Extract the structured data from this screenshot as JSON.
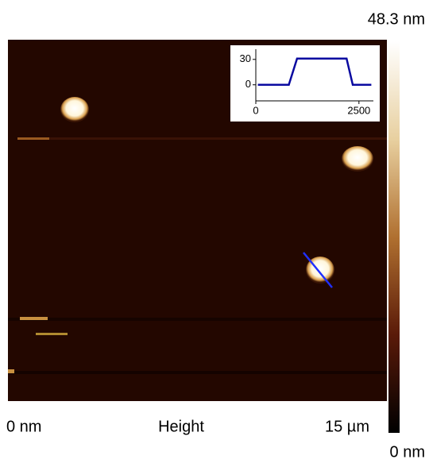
{
  "image": {
    "x_start_label": "0 nm",
    "channel_label": "Height",
    "x_end_label": "15 µm"
  },
  "colorbar": {
    "max_label": "48.3 nm",
    "min_label": "0 nm"
  },
  "chart_data": {
    "type": "line",
    "x": [
      50,
      800,
      1000,
      2200,
      2350,
      2800
    ],
    "series": [
      {
        "color": "#0a0aa0",
        "values": [
          0,
          0,
          31,
          31,
          0,
          0
        ]
      }
    ],
    "xlim": [
      0,
      2850
    ],
    "ylim": [
      -19,
      42
    ],
    "xticks": [
      0,
      2500
    ],
    "yticks": [
      0,
      30
    ]
  }
}
